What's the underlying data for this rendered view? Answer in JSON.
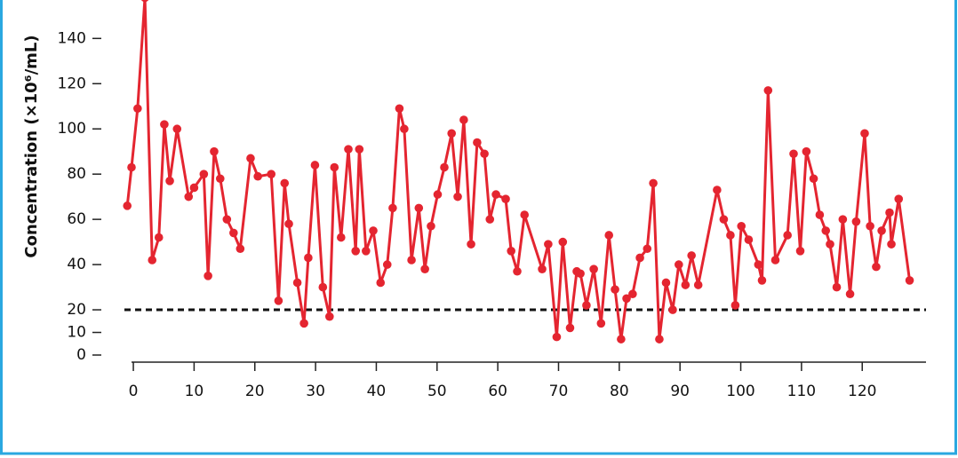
{
  "chart_data": {
    "type": "line",
    "y_label": "Concentration (×10⁶/mL)",
    "x": [
      -1.0,
      -0.3,
      0.7,
      1.9,
      3.1,
      4.2,
      5.1,
      6.0,
      7.2,
      9.1,
      10.0,
      11.6,
      12.3,
      13.3,
      14.3,
      15.4,
      16.5,
      17.6,
      19.3,
      20.5,
      22.7,
      23.9,
      24.9,
      25.6,
      27.0,
      28.1,
      28.8,
      29.9,
      31.2,
      32.3,
      33.1,
      34.2,
      35.4,
      36.6,
      37.2,
      38.3,
      39.5,
      40.7,
      41.8,
      42.7,
      43.8,
      44.6,
      45.8,
      47.0,
      48.0,
      49.0,
      50.1,
      51.2,
      52.4,
      53.4,
      54.4,
      55.6,
      56.6,
      57.8,
      58.7,
      59.7,
      61.3,
      62.2,
      63.2,
      64.4,
      67.3,
      68.3,
      69.7,
      70.7,
      71.9,
      73.0,
      73.6,
      74.6,
      75.8,
      77.0,
      78.3,
      79.3,
      80.3,
      81.2,
      82.2,
      83.4,
      84.6,
      85.6,
      86.6,
      87.7,
      88.8,
      89.8,
      90.9,
      91.9,
      93.0,
      96.1,
      97.2,
      98.3,
      99.1,
      100.1,
      101.3,
      102.9,
      103.5,
      104.5,
      105.7,
      107.7,
      108.7,
      109.8,
      110.8,
      112.0,
      113.0,
      114.0,
      114.7,
      115.8,
      116.8,
      118.0,
      119.0,
      120.4,
      121.3,
      122.3,
      123.2,
      124.5,
      124.8,
      126.0,
      127.8
    ],
    "values": [
      66,
      83,
      109,
      158,
      42,
      52,
      102,
      77,
      100,
      70,
      74,
      80,
      35,
      90,
      78,
      60,
      54,
      47,
      87,
      79,
      80,
      24,
      76,
      58,
      32,
      14,
      43,
      84,
      30,
      17,
      83,
      52,
      91,
      46,
      91,
      46,
      55,
      32,
      40,
      65,
      109,
      100,
      42,
      65,
      38,
      57,
      71,
      83,
      98,
      70,
      104,
      49,
      94,
      89,
      60,
      71,
      69,
      46,
      37,
      62,
      38,
      49,
      8,
      50,
      12,
      37,
      36,
      22,
      38,
      14,
      53,
      29,
      7,
      25,
      27,
      43,
      47,
      76,
      7,
      32,
      20,
      40,
      31,
      44,
      31,
      73,
      60,
      53,
      22,
      57,
      51,
      40,
      33,
      117,
      42,
      53,
      89,
      46,
      90,
      78,
      62,
      55,
      49,
      30,
      60,
      27,
      59,
      98,
      57,
      39,
      55,
      63,
      49,
      69,
      33
    ],
    "color": "#e42530",
    "reference_line": 20,
    "xlim": [
      -0.3,
      130.5
    ],
    "xticks": [
      0,
      10,
      20,
      30,
      40,
      50,
      60,
      70,
      80,
      90,
      100,
      110,
      120
    ],
    "ylim": [
      0,
      157
    ],
    "yticks": [
      0,
      10,
      20,
      40,
      60,
      80,
      100,
      120,
      140
    ]
  }
}
